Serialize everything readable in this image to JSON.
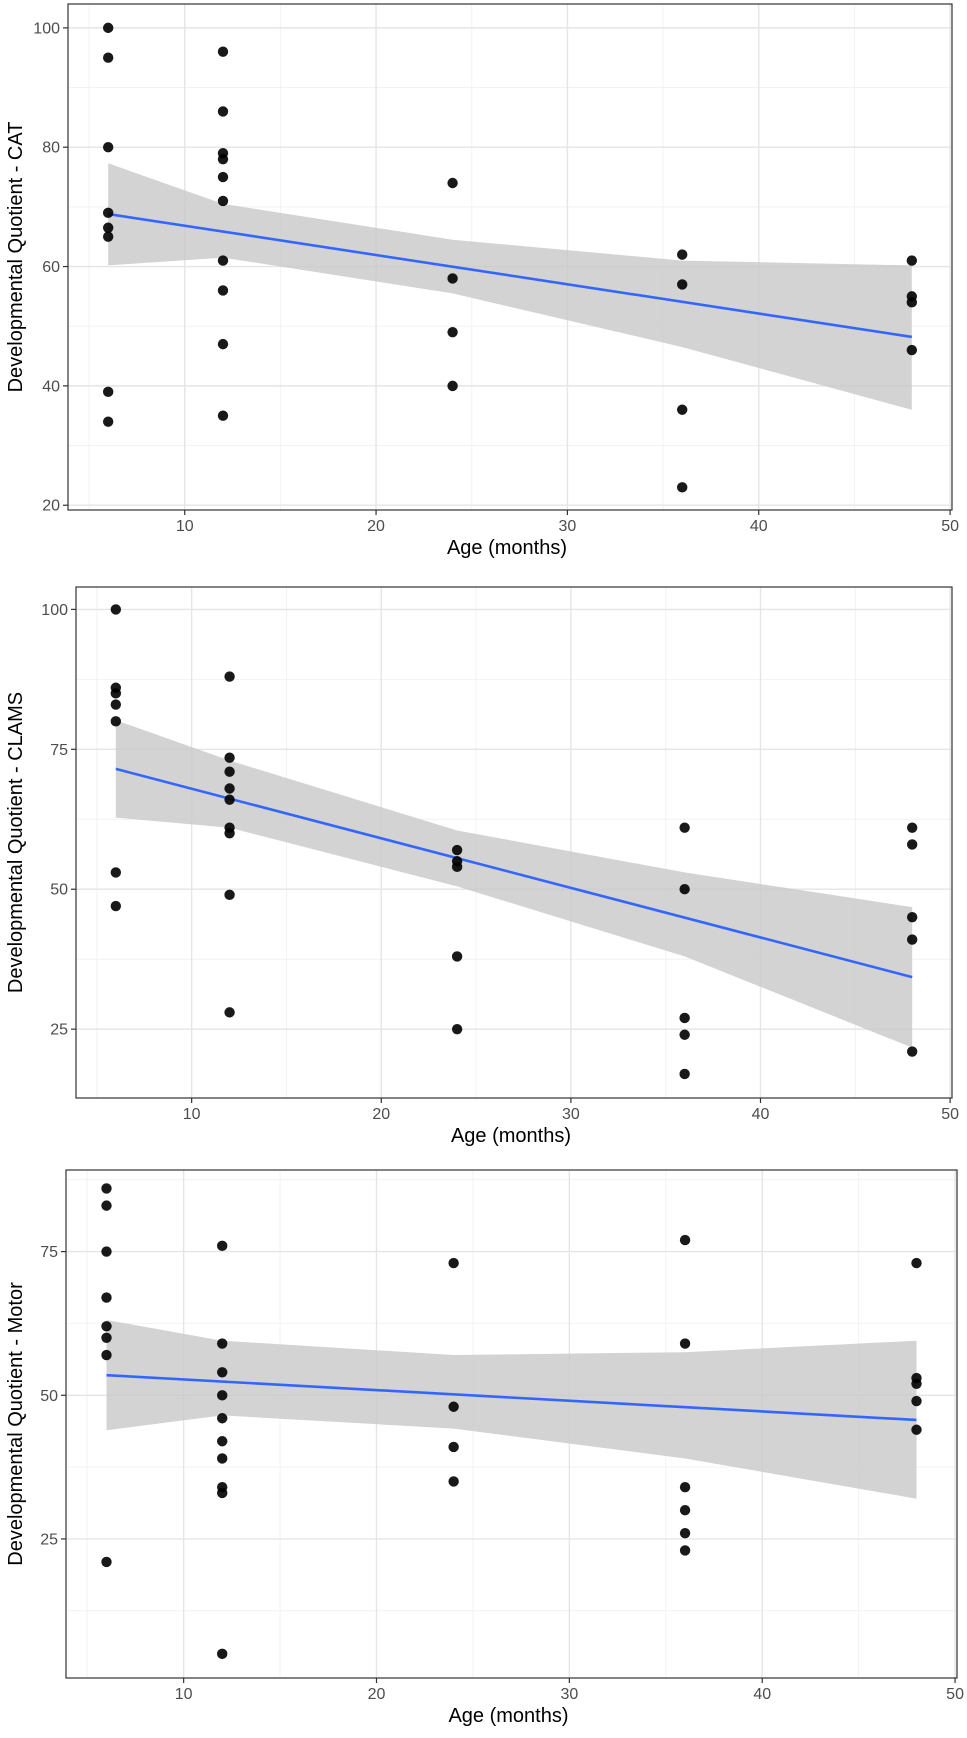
{
  "figure_colors": {
    "background": "#ffffff",
    "panel_border": "#333333",
    "grid_major": "#e5e5e5",
    "grid_minor": "#f2f2f2",
    "points": "#000000",
    "fit_line": "#3366FF",
    "confidence_band": "#c8c8c8",
    "tick_text": "#4d4d4d"
  },
  "chart_data": [
    {
      "type": "scatter",
      "xlabel": "Age (months)",
      "ylabel": "Developmental Quotient - CAT",
      "xlim": [
        3.9,
        50.1
      ],
      "ylim": [
        19.2,
        104.0
      ],
      "xticks": [
        10,
        20,
        30,
        40,
        50
      ],
      "yticks": [
        20,
        40,
        60,
        80,
        100
      ],
      "grid": true,
      "points": [
        {
          "x": 6,
          "y": 100
        },
        {
          "x": 6,
          "y": 95
        },
        {
          "x": 6,
          "y": 80
        },
        {
          "x": 6,
          "y": 69
        },
        {
          "x": 6,
          "y": 66.5
        },
        {
          "x": 6,
          "y": 65
        },
        {
          "x": 6,
          "y": 39
        },
        {
          "x": 6,
          "y": 34
        },
        {
          "x": 12,
          "y": 96
        },
        {
          "x": 12,
          "y": 86
        },
        {
          "x": 12,
          "y": 79
        },
        {
          "x": 12,
          "y": 78
        },
        {
          "x": 12,
          "y": 75
        },
        {
          "x": 12,
          "y": 71
        },
        {
          "x": 12,
          "y": 61
        },
        {
          "x": 12,
          "y": 56
        },
        {
          "x": 12,
          "y": 47
        },
        {
          "x": 12,
          "y": 35
        },
        {
          "x": 24,
          "y": 74
        },
        {
          "x": 24,
          "y": 58
        },
        {
          "x": 24,
          "y": 49
        },
        {
          "x": 24,
          "y": 40
        },
        {
          "x": 36,
          "y": 62
        },
        {
          "x": 36,
          "y": 57
        },
        {
          "x": 36,
          "y": 36
        },
        {
          "x": 36,
          "y": 23
        },
        {
          "x": 48,
          "y": 61
        },
        {
          "x": 48,
          "y": 55
        },
        {
          "x": 48,
          "y": 54
        },
        {
          "x": 48,
          "y": 46
        }
      ],
      "fit_line": {
        "x": [
          6,
          48
        ],
        "y": [
          68.8,
          48.2
        ]
      },
      "confidence_band": {
        "x": [
          6,
          12,
          24,
          36,
          48
        ],
        "lower": [
          60.2,
          61.5,
          55.5,
          46.5,
          36
        ],
        "upper": [
          77.3,
          70.5,
          64.5,
          61.0,
          60.2
        ]
      }
    },
    {
      "type": "scatter",
      "xlabel": "Age (months)",
      "ylabel": "Developmental Quotient - CLAMS",
      "xlim": [
        3.9,
        50.1
      ],
      "ylim": [
        12.7,
        104.0
      ],
      "xticks": [
        10,
        20,
        30,
        40,
        50
      ],
      "yticks": [
        25,
        50,
        75,
        100
      ],
      "grid": true,
      "points": [
        {
          "x": 6,
          "y": 100
        },
        {
          "x": 6,
          "y": 86
        },
        {
          "x": 6,
          "y": 85
        },
        {
          "x": 6,
          "y": 83
        },
        {
          "x": 6,
          "y": 80
        },
        {
          "x": 6,
          "y": 53
        },
        {
          "x": 6,
          "y": 47
        },
        {
          "x": 12,
          "y": 88
        },
        {
          "x": 12,
          "y": 73.5
        },
        {
          "x": 12,
          "y": 71
        },
        {
          "x": 12,
          "y": 68
        },
        {
          "x": 12,
          "y": 66
        },
        {
          "x": 12,
          "y": 61
        },
        {
          "x": 12,
          "y": 60
        },
        {
          "x": 12,
          "y": 49
        },
        {
          "x": 12,
          "y": 28
        },
        {
          "x": 24,
          "y": 57
        },
        {
          "x": 24,
          "y": 55
        },
        {
          "x": 24,
          "y": 54
        },
        {
          "x": 24,
          "y": 38
        },
        {
          "x": 24,
          "y": 25
        },
        {
          "x": 36,
          "y": 61
        },
        {
          "x": 36,
          "y": 50
        },
        {
          "x": 36,
          "y": 27
        },
        {
          "x": 36,
          "y": 24
        },
        {
          "x": 36,
          "y": 17
        },
        {
          "x": 48,
          "y": 61
        },
        {
          "x": 48,
          "y": 58
        },
        {
          "x": 48,
          "y": 45
        },
        {
          "x": 48,
          "y": 41
        },
        {
          "x": 48,
          "y": 21
        }
      ],
      "fit_line": {
        "x": [
          6,
          48
        ],
        "y": [
          71.5,
          34.3
        ]
      },
      "confidence_band": {
        "x": [
          6,
          12,
          24,
          36,
          48
        ],
        "lower": [
          62.8,
          61.0,
          50.5,
          38.0,
          21.7
        ],
        "upper": [
          80.2,
          73.0,
          60.5,
          53.0,
          46.8
        ]
      }
    },
    {
      "type": "scatter",
      "xlabel": "Age (months)",
      "ylabel": "Developmental Quotient - Motor",
      "xlim": [
        3.9,
        50.1
      ],
      "ylim": [
        0.8,
        89.2
      ],
      "xticks": [
        10,
        20,
        30,
        40,
        50
      ],
      "yticks": [
        25,
        50,
        75
      ],
      "grid": true,
      "points": [
        {
          "x": 6,
          "y": 86
        },
        {
          "x": 6,
          "y": 83
        },
        {
          "x": 6,
          "y": 75
        },
        {
          "x": 6,
          "y": 67
        },
        {
          "x": 6,
          "y": 62
        },
        {
          "x": 6,
          "y": 60
        },
        {
          "x": 6,
          "y": 57
        },
        {
          "x": 6,
          "y": 21
        },
        {
          "x": 12,
          "y": 76
        },
        {
          "x": 12,
          "y": 59
        },
        {
          "x": 12,
          "y": 54
        },
        {
          "x": 12,
          "y": 50
        },
        {
          "x": 12,
          "y": 46
        },
        {
          "x": 12,
          "y": 42
        },
        {
          "x": 12,
          "y": 39
        },
        {
          "x": 12,
          "y": 34
        },
        {
          "x": 12,
          "y": 33
        },
        {
          "x": 12,
          "y": 5
        },
        {
          "x": 24,
          "y": 73
        },
        {
          "x": 24,
          "y": 48
        },
        {
          "x": 24,
          "y": 41
        },
        {
          "x": 24,
          "y": 35
        },
        {
          "x": 36,
          "y": 77
        },
        {
          "x": 36,
          "y": 59
        },
        {
          "x": 36,
          "y": 34
        },
        {
          "x": 36,
          "y": 30
        },
        {
          "x": 36,
          "y": 26
        },
        {
          "x": 36,
          "y": 23
        },
        {
          "x": 48,
          "y": 73
        },
        {
          "x": 48,
          "y": 53
        },
        {
          "x": 48,
          "y": 52
        },
        {
          "x": 48,
          "y": 49
        },
        {
          "x": 48,
          "y": 44
        }
      ],
      "fit_line": {
        "x": [
          6,
          48
        ],
        "y": [
          53.5,
          45.7
        ]
      },
      "confidence_band": {
        "x": [
          6,
          12,
          24,
          36,
          48
        ],
        "lower": [
          43.9,
          46.5,
          44.2,
          39.0,
          32.0
        ],
        "upper": [
          63.1,
          59.5,
          57.0,
          57.5,
          59.5
        ]
      }
    }
  ]
}
